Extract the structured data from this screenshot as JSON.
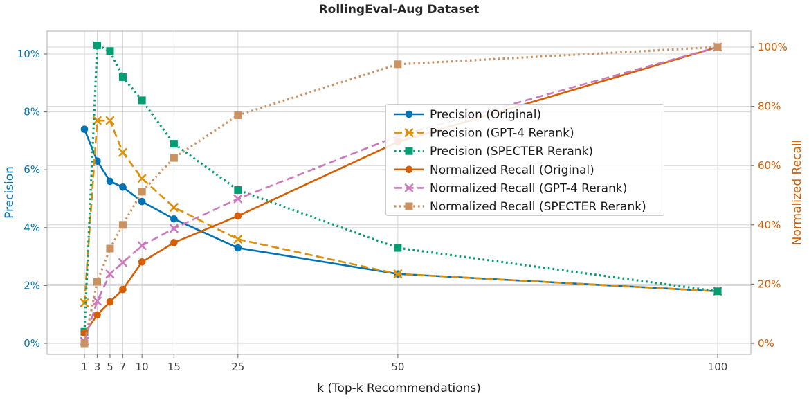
{
  "chart_data": {
    "type": "line",
    "title": "RollingEval-Aug Dataset",
    "xlabel": "k (Top-k Recommendations)",
    "ylabel_left": "Precision",
    "ylabel_right": "Normalized Recall",
    "grid": true,
    "legend_position": "center-right",
    "x": [
      1,
      3,
      5,
      7,
      10,
      15,
      25,
      50,
      100
    ],
    "x_tick_labels": [
      "1",
      "3",
      "5",
      "7",
      "10",
      "15",
      "25",
      "50",
      "100"
    ],
    "ticks_left": {
      "values": [
        0,
        2,
        4,
        6,
        8,
        10
      ],
      "labels": [
        "0%",
        "2%",
        "4%",
        "6%",
        "8%",
        "10%"
      ]
    },
    "ticks_right": {
      "values": [
        0,
        20,
        40,
        60,
        80,
        100
      ],
      "labels": [
        "0%",
        "20%",
        "40%",
        "60%",
        "80%",
        "100%"
      ]
    },
    "ylim_left": [
      0,
      10
    ],
    "ylim_right": [
      0,
      100
    ],
    "axis_colors": {
      "left": "#0173b2",
      "right": "#d55e00"
    },
    "series": [
      {
        "name": "Precision (Original)",
        "axis": "left",
        "color": "#0173b2",
        "style": "solid",
        "marker": "circle",
        "values": [
          7.4,
          6.3,
          5.6,
          5.4,
          4.9,
          4.3,
          3.3,
          2.4,
          1.8
        ]
      },
      {
        "name": "Precision (GPT-4 Rerank)",
        "axis": "left",
        "color": "#de8f05",
        "style": "dashed",
        "marker": "x",
        "values": [
          1.4,
          7.7,
          7.7,
          6.6,
          5.7,
          4.7,
          3.6,
          2.4,
          1.8
        ]
      },
      {
        "name": "Precision (SPECTER Rerank)",
        "axis": "left",
        "color": "#029e73",
        "style": "dotted",
        "marker": "square",
        "values": [
          0.4,
          10.3,
          10.1,
          9.2,
          8.4,
          6.9,
          5.3,
          3.3,
          1.8
        ]
      },
      {
        "name": "Normalized Recall (Original)",
        "axis": "right",
        "color": "#d55e00",
        "style": "solid",
        "marker": "circle",
        "values": [
          3.5,
          9.6,
          14.0,
          18.2,
          27.5,
          34.0,
          43.0,
          68.0,
          100.0
        ]
      },
      {
        "name": "Normalized Recall (GPT-4 Rerank)",
        "axis": "right",
        "color": "#cc78bc",
        "style": "dashed",
        "marker": "x",
        "values": [
          0.7,
          14.3,
          23.4,
          27.3,
          33.0,
          38.8,
          48.8,
          70.0,
          100.0
        ]
      },
      {
        "name": "Normalized Recall (SPECTER Rerank)",
        "axis": "right",
        "color": "#ca9161",
        "style": "dotted",
        "marker": "square",
        "values": [
          0.0,
          20.8,
          32.0,
          40.0,
          51.2,
          62.6,
          77.0,
          94.2,
          100.0
        ]
      }
    ]
  }
}
